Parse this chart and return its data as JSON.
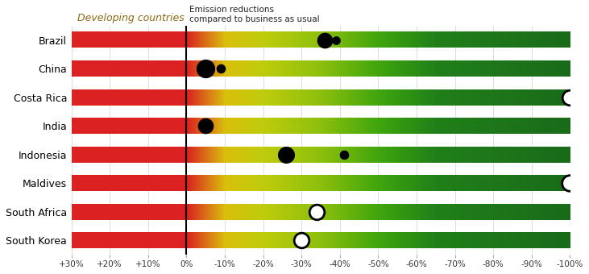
{
  "countries": [
    "Brazil",
    "China",
    "Costa Rica",
    "India",
    "Indonesia",
    "Maldives",
    "South Africa",
    "South Korea"
  ],
  "title_left": "Developing countries",
  "title_right": "Emission reductions\ncompared to business as usual",
  "x_min": 30,
  "x_max": -100,
  "xtick_labels": [
    "+30%",
    "+20%",
    "+10%",
    "0%",
    "-10%",
    "-20%",
    "-30%",
    "-40%",
    "-50%",
    "-60%",
    "-70%",
    "-80%",
    "-90%",
    "-100%"
  ],
  "xtick_values": [
    30,
    20,
    10,
    0,
    -10,
    -20,
    -30,
    -40,
    -50,
    -60,
    -70,
    -80,
    -90,
    -100
  ],
  "bar_height": 0.55,
  "pledges": {
    "Brazil": {
      "unconditional": -36.1,
      "conditional": -38.9,
      "unc_size": 200,
      "cond_size": 60
    },
    "China": {
      "unconditional": -5.0,
      "conditional": -9.0,
      "unc_size": 280,
      "cond_size": 70
    },
    "Costa Rica": {
      "unconditional": null,
      "conditional": -100.0,
      "unc_size": 0,
      "cond_size": 180
    },
    "India": {
      "unconditional": -5.0,
      "conditional": null,
      "unc_size": 200,
      "cond_size": 0
    },
    "Indonesia": {
      "unconditional": -26.0,
      "conditional": -41.0,
      "unc_size": 230,
      "cond_size": 70
    },
    "Maldives": {
      "unconditional": null,
      "conditional": -100.0,
      "unc_size": 0,
      "cond_size": 200
    },
    "South Africa": {
      "unconditional": null,
      "conditional": -34.0,
      "unc_size": 0,
      "cond_size": 180
    },
    "South Korea": {
      "unconditional": null,
      "conditional": -30.0,
      "unc_size": 0,
      "cond_size": 180
    }
  },
  "background_color": "#ffffff",
  "grid_color": "#d0d0d0",
  "title_left_color": "#8B6914",
  "title_right_color": "#222222",
  "zero_line_color": "#000000",
  "color_stops": {
    "x": [
      30,
      0,
      -10,
      -20,
      -35,
      -50,
      -65,
      -100
    ],
    "r": [
      0.86,
      0.86,
      0.85,
      0.75,
      0.55,
      0.25,
      0.13,
      0.1
    ],
    "g": [
      0.13,
      0.13,
      0.75,
      0.8,
      0.75,
      0.65,
      0.5,
      0.42
    ],
    "b": [
      0.13,
      0.13,
      0.05,
      0.05,
      0.05,
      0.05,
      0.1,
      0.1
    ]
  }
}
